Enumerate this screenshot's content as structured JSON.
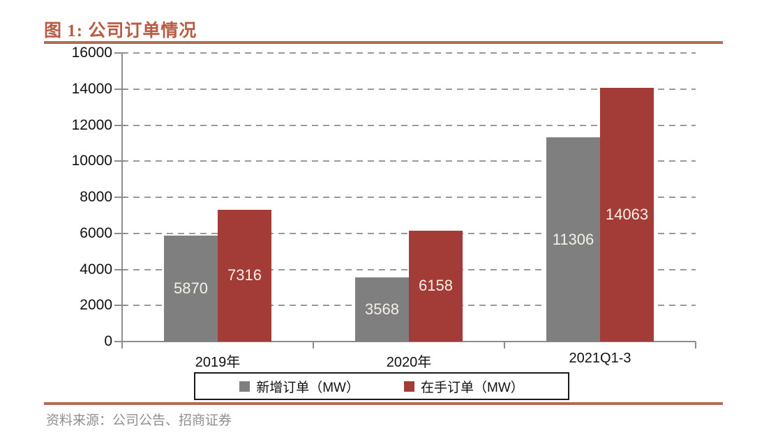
{
  "figure": {
    "title": "图 1: 公司订单情况",
    "source_note": "资料来源：公司公告、招商证券",
    "colors": {
      "title_text": "#b95a42",
      "rule": "#b26c54",
      "axis": "#8c8c8c",
      "gridline": "#999999",
      "source_text": "#8f8f8f",
      "legend_border": "#1a1a1a",
      "bar_value_label": "#f4f1ea"
    }
  },
  "chart_data": {
    "type": "bar",
    "title": "图 1: 公司订单情况",
    "categories": [
      "2019年",
      "2020年",
      "2021Q1-3"
    ],
    "series": [
      {
        "name": "新增订单（MW）",
        "color": "#7f7f7f",
        "values": [
          5870,
          3568,
          11306
        ]
      },
      {
        "name": "在手订单（MW）",
        "color": "#a33b36",
        "values": [
          7316,
          6158,
          14063
        ]
      }
    ],
    "xlabel": "",
    "ylabel": "",
    "ylim": [
      0,
      16000
    ],
    "ytick_step": 2000,
    "ytick_labels": [
      "0",
      "2000",
      "4000",
      "6000",
      "8000",
      "10000",
      "12000",
      "14000",
      "16000"
    ],
    "grid": "horizontal-dashed",
    "legend_position": "bottom-boxed",
    "data_labels": "inside-center-white"
  }
}
